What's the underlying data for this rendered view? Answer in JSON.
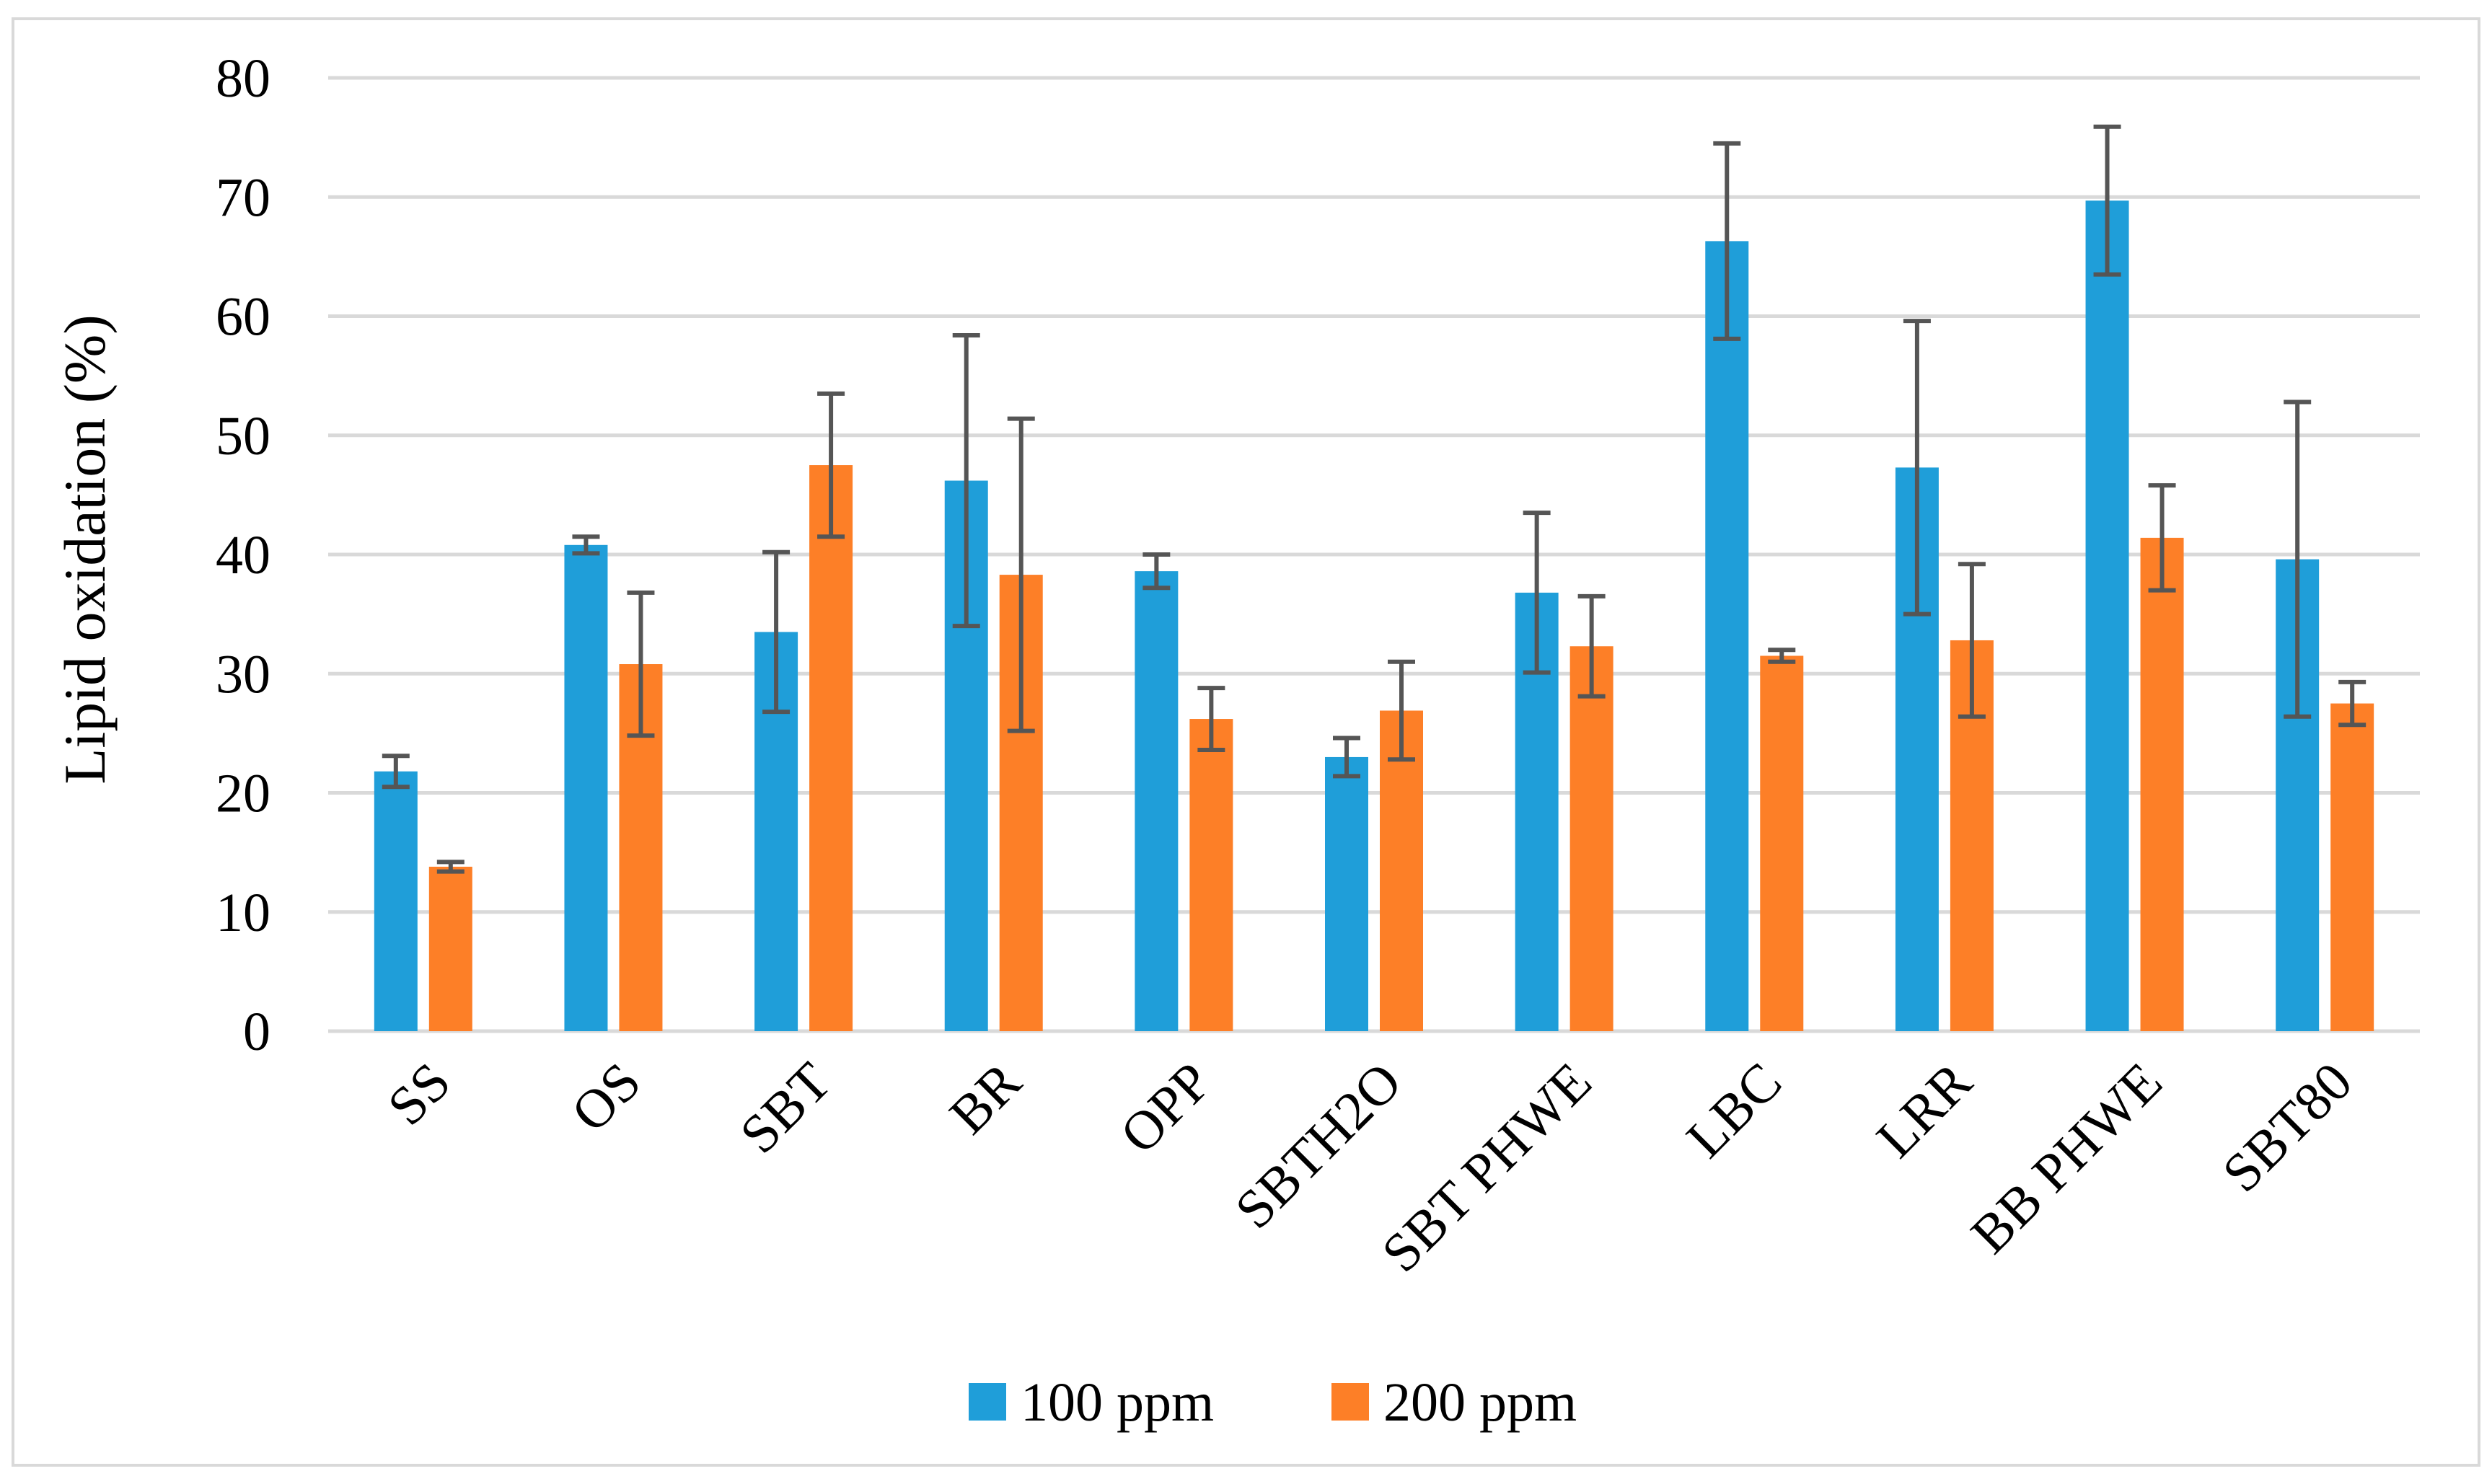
{
  "chart_data": {
    "type": "bar",
    "title": "",
    "xlabel": "",
    "ylabel": "Lipid oxidation (%)",
    "ylim": [
      0,
      80
    ],
    "yticks": [
      0,
      10,
      20,
      30,
      40,
      50,
      60,
      70,
      80
    ],
    "grid": true,
    "legend_position": "bottom",
    "categories": [
      "SS",
      "OS",
      "SBT",
      "BR",
      "OPP",
      "SBTH2O",
      "SBT PHWE",
      "LBC",
      "LRR",
      "BB PHWE",
      "SBT80"
    ],
    "series": [
      {
        "name": "100 ppm",
        "color": "#1F9ED9",
        "values": [
          21.8,
          40.8,
          33.5,
          46.2,
          38.6,
          23.0,
          36.8,
          66.3,
          47.3,
          69.7,
          39.6
        ],
        "errors": [
          1.3,
          0.7,
          6.7,
          12.2,
          1.4,
          1.6,
          6.7,
          8.2,
          12.3,
          6.2,
          13.2
        ]
      },
      {
        "name": "200 ppm",
        "color": "#FD7F27",
        "values": [
          13.8,
          30.8,
          47.5,
          38.3,
          26.2,
          26.9,
          32.3,
          31.5,
          32.8,
          41.4,
          27.5
        ],
        "errors": [
          0.4,
          6.0,
          6.0,
          13.1,
          2.6,
          4.1,
          4.2,
          0.5,
          6.4,
          4.4,
          1.8
        ]
      }
    ],
    "error_bar_color": "#555555",
    "grid_color": "#D9D9D9"
  }
}
